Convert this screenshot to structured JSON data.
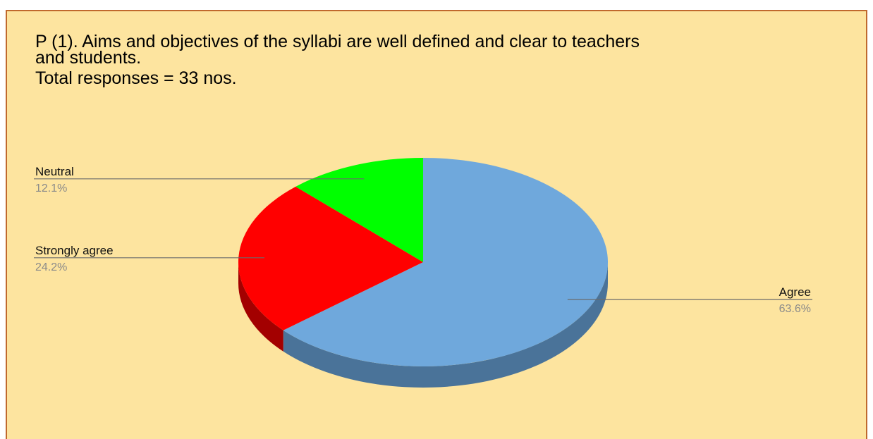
{
  "chart_data": {
    "type": "pie",
    "style": "3d",
    "title_lines": [
      " P (1). Aims and objectives of the syllabi are well defined and clear to teachers",
      "and students.",
      "Total responses = 33 nos."
    ],
    "slices": [
      {
        "label": "Agree",
        "value": 63.6,
        "value_label": "63.6%",
        "color": "#6fa8dc",
        "side_color": "#4a7399"
      },
      {
        "label": "Strongly agree",
        "value": 24.2,
        "value_label": "24.2%",
        "color": "#ff0000",
        "side_color": "#a30000"
      },
      {
        "label": "Neutral",
        "value": 12.1,
        "value_label": "12.1%",
        "color": "#00ff00",
        "side_color": "#00a300"
      }
    ],
    "legend": "labels-with-leader-lines",
    "background": "#fde49f",
    "border_color": "#c0692d"
  }
}
